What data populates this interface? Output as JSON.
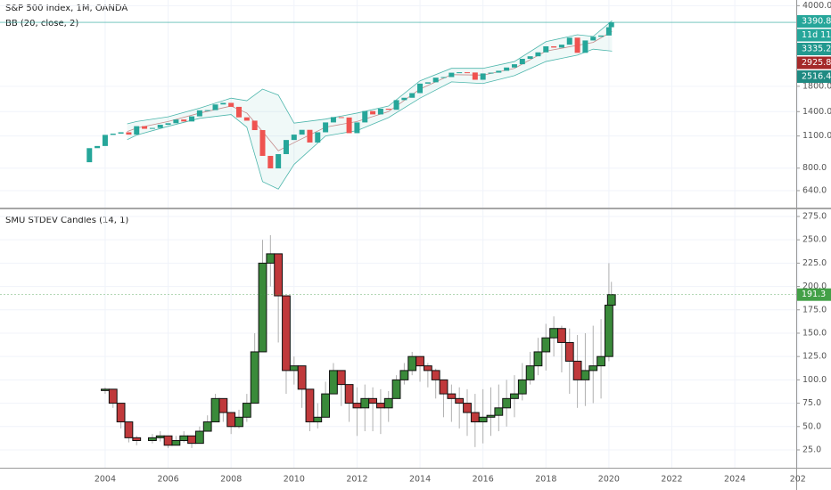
{
  "chart_data": [
    {
      "type": "candlestick",
      "title": "S&P 500 Index, 1M, OANDA",
      "indicator": "BB (20, close, 2)",
      "scale": "log",
      "up_color": "#26a69a",
      "down_color": "#ef5350",
      "xlim": [
        2000.66,
        2025.95
      ],
      "ylim": [
        541,
        4232
      ],
      "yticks": [
        {
          "value": 640,
          "label": "640.0"
        },
        {
          "value": 800,
          "label": "800.0"
        },
        {
          "value": 1100,
          "label": "1100.0"
        },
        {
          "value": 1400,
          "label": "1400.0"
        },
        {
          "value": 1800,
          "label": "1800.0"
        },
        {
          "value": 4000,
          "label": "4000.0"
        }
      ],
      "x": [
        2003.25,
        2003.5,
        2003.75,
        2004.0,
        2004.25,
        2004.5,
        2004.75,
        2005.0,
        2005.25,
        2005.5,
        2005.75,
        2006.0,
        2006.25,
        2006.5,
        2006.75,
        2007.0,
        2007.25,
        2007.5,
        2007.75,
        2008.0,
        2008.25,
        2008.5,
        2008.75,
        2009.0,
        2009.25,
        2009.5,
        2009.75,
        2010.0,
        2010.25,
        2010.5,
        2010.75,
        2011.0,
        2011.25,
        2011.5,
        2011.75,
        2012.0,
        2012.25,
        2012.5,
        2012.75,
        2013.0,
        2013.25,
        2013.5,
        2013.75,
        2014.0,
        2014.25,
        2014.5,
        2014.75,
        2015.0,
        2015.25,
        2015.5,
        2015.75,
        2016.0,
        2016.25,
        2016.5,
        2016.75,
        2017.0,
        2017.25,
        2017.5,
        2017.75,
        2018.0,
        2018.25,
        2018.5,
        2018.75,
        2019.0,
        2019.25,
        2019.5,
        2019.75,
        2020.0,
        2020.08
      ],
      "values": [
        848,
        975,
        996,
        1112,
        1126,
        1141,
        1115,
        1212,
        1181,
        1191,
        1229,
        1248,
        1295,
        1270,
        1336,
        1418,
        1421,
        1503,
        1527,
        1468,
        1323,
        1280,
        1166,
        903,
        798,
        919,
        1057,
        1115,
        1169,
        1031,
        1141,
        1258,
        1326,
        1321,
        1131,
        1258,
        1408,
        1362,
        1441,
        1426,
        1569,
        1606,
        1682,
        1848,
        1872,
        1960,
        1972,
        2059,
        2068,
        2063,
        1920,
        2044,
        2060,
        2099,
        2168,
        2239,
        2363,
        2423,
        2519,
        2674,
        2641,
        2718,
        2914,
        2507,
        2834,
        2941,
        2977,
        3231,
        3390.8
      ],
      "bands": {
        "x": [
          2004.7,
          2005,
          2006,
          2007,
          2008,
          2008.5,
          2009,
          2009.5,
          2010,
          2011,
          2012,
          2013,
          2014,
          2015,
          2016,
          2017,
          2018,
          2019,
          2019.5,
          2020.1
        ],
        "upper": [
          1240,
          1270,
          1330,
          1450,
          1600,
          1560,
          1750,
          1650,
          1250,
          1300,
          1380,
          1480,
          1900,
          2150,
          2150,
          2300,
          2800,
          3000,
          2950,
          3450
        ],
        "basis": [
          1150,
          1190,
          1270,
          1380,
          1480,
          1380,
          1150,
          950,
          1030,
          1200,
          1270,
          1400,
          1750,
          2020,
          2010,
          2150,
          2550,
          2700,
          2780,
          3100
        ],
        "lower": [
          1060,
          1110,
          1210,
          1310,
          1360,
          1200,
          700,
          650,
          830,
          1100,
          1160,
          1320,
          1600,
          1880,
          1850,
          2000,
          2300,
          2450,
          2600,
          2550
        ]
      },
      "badges": [
        {
          "label": "3390.8",
          "color": "#26a69a"
        },
        {
          "label": "11d 11h",
          "color": "#26a69a"
        },
        {
          "label": "3335.2",
          "color": "#22998f"
        },
        {
          "label": "2925.8",
          "color": "#a52a2a"
        },
        {
          "label": "2516.4",
          "color": "#1f8a82"
        }
      ]
    },
    {
      "type": "step-candles",
      "title": "SMU STDEV Candles (14, 1)",
      "up_color": "#3a8a3a",
      "down_color": "#c0393b",
      "badge": {
        "label": "191.3",
        "color": "#43a047"
      },
      "xlim": [
        2000.66,
        2025.95
      ],
      "ylim": [
        5.9,
        282.6
      ],
      "xticks": [
        2004,
        2006,
        2008,
        2010,
        2012,
        2014,
        2016,
        2018,
        2020,
        2022,
        2024,
        {
          "value": 2026,
          "label": "202"
        }
      ],
      "yticks": [
        {
          "value": 25,
          "label": "25.0"
        },
        {
          "value": 50,
          "label": "50.0"
        },
        {
          "value": 75,
          "label": "75.0"
        },
        {
          "value": 100,
          "label": "100.0"
        },
        {
          "value": 125,
          "label": "125.0"
        },
        {
          "value": 150,
          "label": "150.0"
        },
        {
          "value": 175,
          "label": "175.0"
        },
        {
          "value": 200,
          "label": "200.0"
        },
        {
          "value": 225,
          "label": "225.0"
        },
        {
          "value": 250,
          "label": "250.0"
        },
        {
          "value": 275,
          "label": "275.0"
        }
      ],
      "x": [
        2004.0,
        2004.25,
        2004.5,
        2004.75,
        2005.0,
        2005.5,
        2005.75,
        2006.0,
        2006.25,
        2006.5,
        2006.75,
        2007.0,
        2007.25,
        2007.5,
        2007.75,
        2008.0,
        2008.25,
        2008.5,
        2008.75,
        2009.0,
        2009.25,
        2009.5,
        2009.75,
        2010.0,
        2010.25,
        2010.5,
        2010.75,
        2011.0,
        2011.25,
        2011.5,
        2011.75,
        2012.0,
        2012.25,
        2012.5,
        2012.75,
        2013.0,
        2013.25,
        2013.5,
        2013.75,
        2014.0,
        2014.25,
        2014.5,
        2014.75,
        2015.0,
        2015.25,
        2015.5,
        2015.75,
        2016.0,
        2016.25,
        2016.5,
        2016.75,
        2017.0,
        2017.25,
        2017.5,
        2017.75,
        2018.0,
        2018.25,
        2018.5,
        2018.75,
        2019.0,
        2019.25,
        2019.5,
        2019.75,
        2020.0,
        2020.08
      ],
      "values": [
        90,
        75,
        55,
        38,
        35,
        38,
        40,
        30,
        35,
        40,
        32,
        45,
        55,
        80,
        65,
        50,
        60,
        75,
        130,
        225,
        235,
        190,
        110,
        115,
        90,
        55,
        60,
        85,
        110,
        95,
        75,
        70,
        80,
        75,
        70,
        80,
        100,
        110,
        125,
        115,
        110,
        100,
        85,
        80,
        75,
        65,
        55,
        60,
        62,
        70,
        80,
        85,
        100,
        115,
        130,
        145,
        155,
        140,
        120,
        100,
        110,
        115,
        125,
        180,
        191.3
      ],
      "highs": [
        92,
        80,
        60,
        42,
        40,
        42,
        45,
        38,
        40,
        45,
        40,
        50,
        62,
        85,
        72,
        58,
        68,
        85,
        150,
        250,
        255,
        215,
        125,
        125,
        100,
        70,
        75,
        98,
        118,
        100,
        95,
        92,
        95,
        92,
        90,
        88,
        105,
        118,
        130,
        125,
        118,
        112,
        100,
        95,
        92,
        90,
        85,
        90,
        92,
        95,
        100,
        105,
        118,
        130,
        145,
        160,
        168,
        158,
        155,
        148,
        150,
        158,
        165,
        225,
        205
      ],
      "lows": [
        85,
        70,
        48,
        33,
        30,
        32,
        34,
        27,
        30,
        33,
        27,
        38,
        45,
        62,
        55,
        42,
        48,
        55,
        100,
        160,
        200,
        140,
        85,
        95,
        70,
        45,
        48,
        60,
        85,
        72,
        55,
        40,
        45,
        45,
        42,
        55,
        80,
        95,
        105,
        98,
        92,
        80,
        60,
        55,
        48,
        40,
        28,
        32,
        40,
        45,
        50,
        60,
        78,
        95,
        105,
        110,
        125,
        108,
        85,
        70,
        72,
        75,
        80,
        120,
        170
      ]
    }
  ]
}
